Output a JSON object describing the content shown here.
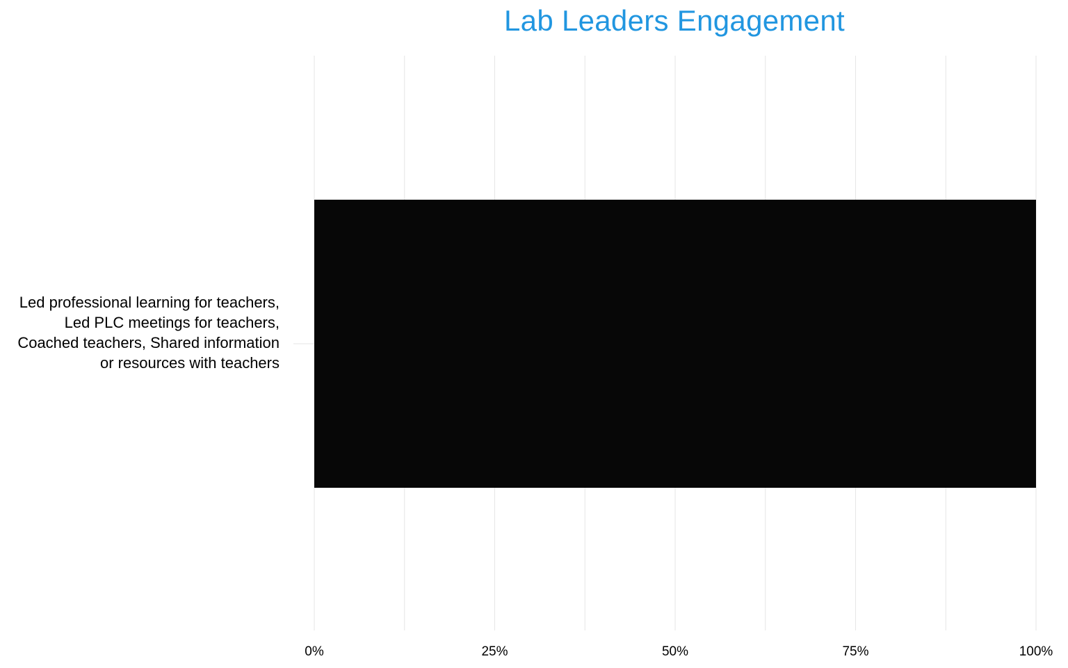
{
  "chart_data": {
    "type": "bar",
    "orientation": "horizontal",
    "title": "Lab Leaders Engagement",
    "categories": [
      "Led professional learning for teachers, Led PLC meetings for teachers, Coached teachers, Shared information or resources with teachers"
    ],
    "values": [
      1.0
    ],
    "xlim": [
      0,
      1
    ],
    "x_ticks": [
      0,
      0.25,
      0.5,
      0.75,
      1.0
    ],
    "x_tick_labels": [
      "0%",
      "25%",
      "50%",
      "75%",
      "100%"
    ],
    "minor_gridlines_x": [
      0.125,
      0.375,
      0.625,
      0.875
    ],
    "grid": true,
    "legend": "none",
    "colors": {
      "bar": "#070707",
      "title": "#2196E0",
      "grid": "#E6E6E6"
    }
  }
}
